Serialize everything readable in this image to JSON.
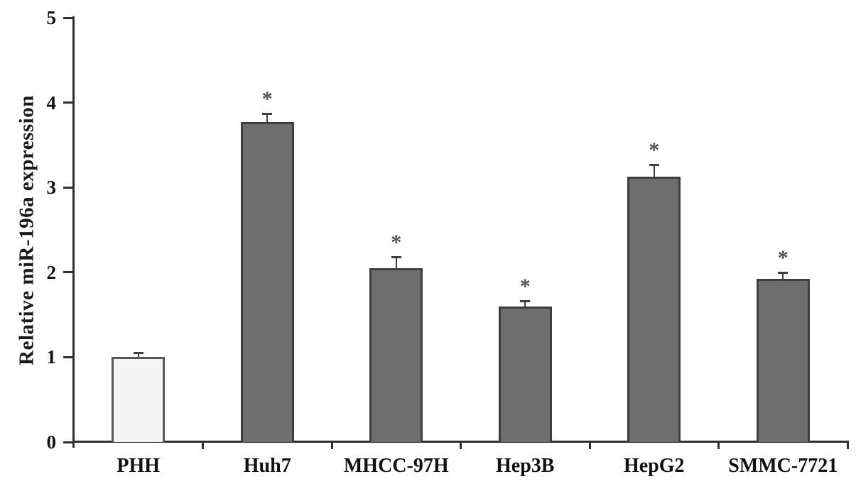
{
  "chart_data": {
    "type": "bar",
    "title": "",
    "xlabel": "",
    "ylabel": "Relative miR-196a expression",
    "categories": [
      "PHH",
      "Huh7",
      "MHCC-97H",
      "Hep3B",
      "HepG2",
      "SMMC-7721"
    ],
    "values": [
      1.0,
      3.77,
      2.05,
      1.6,
      3.13,
      1.92
    ],
    "errors": [
      0.05,
      0.1,
      0.13,
      0.06,
      0.14,
      0.08
    ],
    "significance": [
      "",
      "*",
      "*",
      "*",
      "*",
      "*"
    ],
    "significance_symbol": "*",
    "ylim": [
      0,
      5
    ],
    "yticks": [
      0,
      1,
      2,
      3,
      4,
      5
    ],
    "grid": false,
    "legend_position": "none",
    "bar_styles": [
      {
        "fill": "#f4f4f4",
        "border": "#58585a"
      },
      {
        "fill": "#6e6e6e",
        "border": "#3e3e3e"
      },
      {
        "fill": "#6e6e6e",
        "border": "#3e3e3e"
      },
      {
        "fill": "#6e6e6e",
        "border": "#3e3e3e"
      },
      {
        "fill": "#6e6e6e",
        "border": "#3e3e3e"
      },
      {
        "fill": "#6e6e6e",
        "border": "#3e3e3e"
      }
    ]
  },
  "colors": {
    "axis": "#2f2f2f",
    "error_bar": "#3d3d3d",
    "asterisk": "#4f4f4f",
    "text": "#111111",
    "background": "#ffffff"
  }
}
